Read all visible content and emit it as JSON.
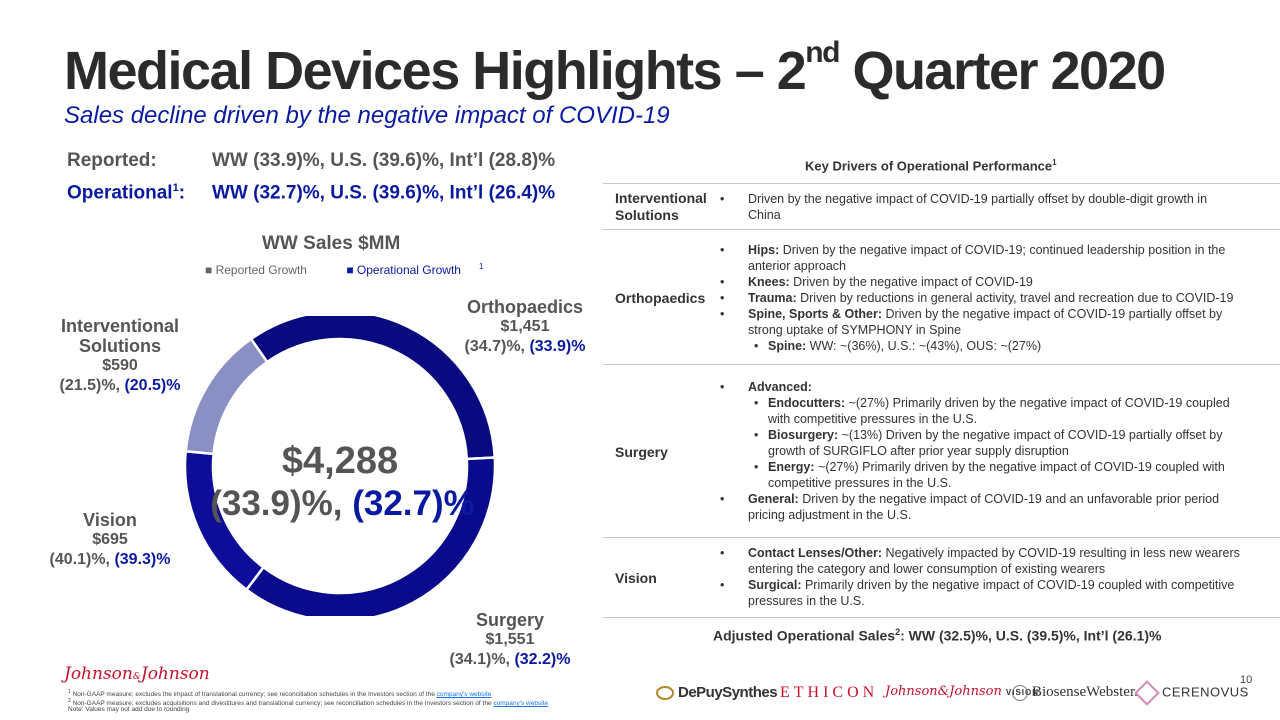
{
  "title": {
    "main": "Medical Devices Highlights – 2",
    "sup": "nd",
    "rest": " Quarter 2020"
  },
  "subtitle": "Sales decline driven by the negative impact of COVID-19",
  "reported": {
    "label": "Reported:",
    "values": "WW (33.9)%, U.S. (39.6)%, Int’l (28.8)%"
  },
  "operational": {
    "label": "Operational",
    "sup": "1",
    "colon": ":",
    "values": "WW (32.7)%, U.S. (39.6)%, Int’l  (26.4)%"
  },
  "chart_title": "WW Sales $MM",
  "legend": {
    "reported": "Reported Growth",
    "operational": "Operational Growth",
    "operational_sup": "1"
  },
  "chart_data": {
    "type": "pie",
    "title": "WW Sales $MM",
    "total": "$4,288",
    "total_reported": "(33.9)%,",
    "total_operational": "(32.7)%",
    "slices": [
      {
        "name": "Orthopaedics",
        "value": 1451,
        "value_label": "$1,451",
        "reported": "(34.7)%,",
        "operational": "(33.9)%",
        "color": "#0a0a80"
      },
      {
        "name": "Surgery",
        "value": 1551,
        "value_label": "$1,551",
        "reported": "(34.1)%,",
        "operational": "(32.2)%",
        "color": "#0a0a8c"
      },
      {
        "name": "Vision",
        "value": 695,
        "value_label": "$695",
        "reported": "(40.1)%,",
        "operational": "(39.3)%",
        "color": "#0d0d99"
      },
      {
        "name": "Interventional Solutions",
        "value": 590,
        "value_label": "$590",
        "reported": "(21.5)%,",
        "operational": "(20.5)%",
        "color": "#8a8fc4"
      }
    ]
  },
  "labels": {
    "ortho": {
      "name": "Orthopaedics",
      "value": "$1,451",
      "reported": "(34.7)%, ",
      "operational": "(33.9)%"
    },
    "interv": {
      "name1": "Interventional",
      "name2": "Solutions",
      "value": "$590",
      "reported": "(21.5)%, ",
      "operational": "(20.5)%"
    },
    "vision": {
      "name": "Vision",
      "value": "$695",
      "reported": "(40.1)%, ",
      "operational": "(39.3)%"
    },
    "surgery": {
      "name": "Surgery",
      "value": "$1,551",
      "reported": "(34.1)%, ",
      "operational": "(32.2)%"
    }
  },
  "center": {
    "total": "$4,288",
    "reported": "(33.9)%, ",
    "operational": "(32.7)%"
  },
  "key_drivers": {
    "header": "Key Drivers of Operational Performance",
    "header_sup": "1",
    "cat_interventional": [
      "Interventional",
      "Solutions"
    ],
    "cat_orthopaedics": "Orthopaedics",
    "cat_surgery": "Surgery",
    "cat_vision": "Vision",
    "bullet": "•",
    "interv_1": "Driven by the negative impact of COVID-19 partially offset by double-digit growth in",
    "interv_2": "China",
    "hips_b": "Hips:",
    "hips_1": " Driven by the negative impact of COVID-19; continued leadership position in the",
    "hips_2": "anterior approach",
    "knees_b": "Knees:",
    "knees": " Driven by the negative impact of COVID-19",
    "trauma_b": "Trauma:",
    "trauma": " Driven by reductions in general activity, travel and recreation due to COVID-19",
    "spine_b": "Spine, Sports & Other:",
    "spine_1": " Driven by the negative impact of COVID-19 partially offset by",
    "spine_2": "strong uptake of SYMPHONY in Spine",
    "spine_sub_b": "Spine:",
    "spine_sub": " WW: ~(36%), U.S.: ~(43%), OUS: ~(27%)",
    "advanced_b": "Advanced:",
    "endo_b": "Endocutters:",
    "endo_1": " ~(27%) Primarily driven by the negative impact of COVID-19 coupled",
    "endo_2": "with competitive pressures in the U.S.",
    "bio_b": "Biosurgery:",
    "bio_1": " ~(13%) Driven by the negative impact of COVID-19 partially offset by",
    "bio_2": "growth of SURGIFLO after prior year supply disruption",
    "energy_b": "Energy:",
    "energy_1": " ~(27%) Primarily driven by the negative impact of COVID-19 coupled with",
    "energy_2": "competitive pressures in the U.S.",
    "general_b": "General:",
    "general_1": " Driven by the negative impact of COVID-19 and an unfavorable prior period",
    "general_2": "pricing adjustment in the U.S.",
    "contact_b": "Contact Lenses/Other:",
    "contact_1": " Negatively impacted by COVID-19 resulting in less new wearers",
    "contact_2": "entering the category and lower consumption of existing wearers",
    "surgical_b": "Surgical:",
    "surgical_1": " Primarily driven by the negative impact of COVID-19 coupled with competitive",
    "surgical_2": "pressures in the U.S."
  },
  "adjusted": {
    "label": "Adjusted Operational Sales",
    "sup": "2",
    "values": ": WW (32.5)%, U.S. (39.5)%, Int’l (26.1)%"
  },
  "footer": {
    "logo_a": "Johnson",
    "logo_amp": "&",
    "logo_b": "Johnson",
    "fn1_sup": "1",
    "fn1": " Non-GAAP measure; excludes the impact of translational currency; see reconciliation schedules in the Investors section of the ",
    "fn2_sup": "2",
    "fn2": " Non-GAAP measure; excludes acquisitions and divestitures and translational currency; see reconciliation schedules in the Investors section of the ",
    "link": "company's website",
    "fn3": "Note: Values may not add due to rounding",
    "page": "10"
  },
  "brands": {
    "depuy": "DePuySynthes",
    "ethicon": "ETHICON",
    "vision_script": "Johnson&Johnson",
    "vision_word": "VISION",
    "biosense": "BiosenseWebster.",
    "cerenovus": "CERENOVUS"
  }
}
